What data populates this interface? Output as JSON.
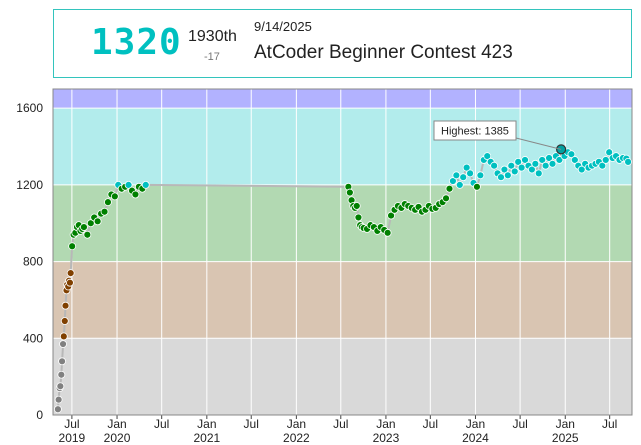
{
  "header": {
    "rating": "1320",
    "place": "1930th",
    "delta": "-17",
    "date": "9/14/2025",
    "contest": "AtCoder Beginner Contest 423"
  },
  "chart_data": {
    "type": "line",
    "title": "",
    "xlabel": "",
    "ylabel": "",
    "ylim": [
      0,
      1700
    ],
    "xlim": [
      "2019-04-15",
      "2025-09-30"
    ],
    "grid": true,
    "bands": [
      {
        "from": 0,
        "to": 400,
        "color": "#d9d9d9"
      },
      {
        "from": 400,
        "to": 800,
        "color": "#d9c5b2"
      },
      {
        "from": 800,
        "to": 1200,
        "color": "#b2d9b2"
      },
      {
        "from": 1200,
        "to": 1600,
        "color": "#b2ecec"
      },
      {
        "from": 1600,
        "to": 1700,
        "color": "#b2b2ff"
      }
    ],
    "y_ticks": [
      0,
      400,
      800,
      1200,
      1600
    ],
    "x_ticks": [
      {
        "date": "2019-07-01",
        "label": "Jul",
        "year": "2019"
      },
      {
        "date": "2020-01-01",
        "label": "Jan",
        "year": "2020"
      },
      {
        "date": "2020-07-01",
        "label": "Jul",
        "year": ""
      },
      {
        "date": "2021-01-01",
        "label": "Jan",
        "year": "2021"
      },
      {
        "date": "2021-07-01",
        "label": "Jul",
        "year": ""
      },
      {
        "date": "2022-01-01",
        "label": "Jan",
        "year": "2022"
      },
      {
        "date": "2022-07-01",
        "label": "Jul",
        "year": ""
      },
      {
        "date": "2023-01-01",
        "label": "Jan",
        "year": "2023"
      },
      {
        "date": "2023-07-01",
        "label": "Jul",
        "year": ""
      },
      {
        "date": "2024-01-01",
        "label": "Jan",
        "year": "2024"
      },
      {
        "date": "2024-07-01",
        "label": "Jul",
        "year": ""
      },
      {
        "date": "2025-01-01",
        "label": "Jan",
        "year": "2025"
      },
      {
        "date": "2025-07-01",
        "label": "Jul",
        "year": ""
      }
    ],
    "highest_label": "Highest: 1385",
    "highest_point": {
      "x": "2024-12-15",
      "y": 1385
    },
    "series": [
      {
        "points": [
          {
            "x": "2019-05-05",
            "y": 30
          },
          {
            "x": "2019-05-08",
            "y": 80
          },
          {
            "x": "2019-05-12",
            "y": 140
          },
          {
            "x": "2019-05-15",
            "y": 150
          },
          {
            "x": "2019-05-19",
            "y": 210
          },
          {
            "x": "2019-05-22",
            "y": 280
          },
          {
            "x": "2019-05-26",
            "y": 370
          },
          {
            "x": "2019-05-29",
            "y": 410
          },
          {
            "x": "2019-06-02",
            "y": 490
          },
          {
            "x": "2019-06-05",
            "y": 570
          },
          {
            "x": "2019-06-09",
            "y": 650
          },
          {
            "x": "2019-06-12",
            "y": 680
          },
          {
            "x": "2019-06-16",
            "y": 670
          },
          {
            "x": "2019-06-19",
            "y": 700
          },
          {
            "x": "2019-06-23",
            "y": 690
          },
          {
            "x": "2019-06-26",
            "y": 740
          },
          {
            "x": "2019-07-02",
            "y": 880
          },
          {
            "x": "2019-07-08",
            "y": 940
          },
          {
            "x": "2019-07-15",
            "y": 950
          },
          {
            "x": "2019-07-22",
            "y": 980
          },
          {
            "x": "2019-07-29",
            "y": 990
          },
          {
            "x": "2019-08-05",
            "y": 960
          },
          {
            "x": "2019-08-12",
            "y": 970
          },
          {
            "x": "2019-08-19",
            "y": 980
          },
          {
            "x": "2019-09-02",
            "y": 940
          },
          {
            "x": "2019-09-16",
            "y": 1000
          },
          {
            "x": "2019-09-30",
            "y": 1030
          },
          {
            "x": "2019-10-14",
            "y": 1010
          },
          {
            "x": "2019-10-28",
            "y": 1050
          },
          {
            "x": "2019-11-11",
            "y": 1060
          },
          {
            "x": "2019-11-25",
            "y": 1110
          },
          {
            "x": "2019-12-09",
            "y": 1150
          },
          {
            "x": "2019-12-23",
            "y": 1140
          },
          {
            "x": "2020-01-06",
            "y": 1200
          },
          {
            "x": "2020-01-20",
            "y": 1180
          },
          {
            "x": "2020-02-03",
            "y": 1190
          },
          {
            "x": "2020-02-17",
            "y": 1200
          },
          {
            "x": "2020-03-02",
            "y": 1170
          },
          {
            "x": "2020-03-16",
            "y": 1150
          },
          {
            "x": "2020-03-30",
            "y": 1190
          },
          {
            "x": "2020-04-13",
            "y": 1180
          },
          {
            "x": "2020-04-27",
            "y": 1200
          },
          {
            "x": "2022-08-01",
            "y": 1190
          },
          {
            "x": "2022-08-07",
            "y": 1160
          },
          {
            "x": "2022-08-14",
            "y": 1120
          },
          {
            "x": "2022-08-21",
            "y": 1090
          },
          {
            "x": "2022-08-28",
            "y": 1080
          },
          {
            "x": "2022-09-04",
            "y": 1090
          },
          {
            "x": "2022-09-11",
            "y": 1030
          },
          {
            "x": "2022-09-18",
            "y": 990
          },
          {
            "x": "2022-09-25",
            "y": 980
          },
          {
            "x": "2022-10-02",
            "y": 975
          },
          {
            "x": "2022-10-16",
            "y": 970
          },
          {
            "x": "2022-10-30",
            "y": 990
          },
          {
            "x": "2022-11-13",
            "y": 980
          },
          {
            "x": "2022-11-27",
            "y": 960
          },
          {
            "x": "2022-12-11",
            "y": 980
          },
          {
            "x": "2022-12-25",
            "y": 965
          },
          {
            "x": "2023-01-08",
            "y": 950
          },
          {
            "x": "2023-01-22",
            "y": 1040
          },
          {
            "x": "2023-02-05",
            "y": 1070
          },
          {
            "x": "2023-02-19",
            "y": 1090
          },
          {
            "x": "2023-03-05",
            "y": 1080
          },
          {
            "x": "2023-03-19",
            "y": 1100
          },
          {
            "x": "2023-04-02",
            "y": 1090
          },
          {
            "x": "2023-04-16",
            "y": 1080
          },
          {
            "x": "2023-04-30",
            "y": 1070
          },
          {
            "x": "2023-05-14",
            "y": 1085
          },
          {
            "x": "2023-05-28",
            "y": 1060
          },
          {
            "x": "2023-06-11",
            "y": 1070
          },
          {
            "x": "2023-06-25",
            "y": 1090
          },
          {
            "x": "2023-07-09",
            "y": 1075
          },
          {
            "x": "2023-07-23",
            "y": 1080
          },
          {
            "x": "2023-08-06",
            "y": 1100
          },
          {
            "x": "2023-08-20",
            "y": 1110
          },
          {
            "x": "2023-09-03",
            "y": 1130
          },
          {
            "x": "2023-09-17",
            "y": 1180
          },
          {
            "x": "2023-10-01",
            "y": 1220
          },
          {
            "x": "2023-10-15",
            "y": 1250
          },
          {
            "x": "2023-10-29",
            "y": 1200
          },
          {
            "x": "2023-11-12",
            "y": 1240
          },
          {
            "x": "2023-11-26",
            "y": 1290
          },
          {
            "x": "2023-12-10",
            "y": 1260
          },
          {
            "x": "2023-12-24",
            "y": 1210
          },
          {
            "x": "2024-01-07",
            "y": 1190
          },
          {
            "x": "2024-01-21",
            "y": 1250
          },
          {
            "x": "2024-02-04",
            "y": 1330
          },
          {
            "x": "2024-02-18",
            "y": 1350
          },
          {
            "x": "2024-03-03",
            "y": 1320
          },
          {
            "x": "2024-03-17",
            "y": 1300
          },
          {
            "x": "2024-03-31",
            "y": 1260
          },
          {
            "x": "2024-04-14",
            "y": 1240
          },
          {
            "x": "2024-04-28",
            "y": 1280
          },
          {
            "x": "2024-05-12",
            "y": 1250
          },
          {
            "x": "2024-05-26",
            "y": 1300
          },
          {
            "x": "2024-06-09",
            "y": 1270
          },
          {
            "x": "2024-06-23",
            "y": 1320
          },
          {
            "x": "2024-07-07",
            "y": 1290
          },
          {
            "x": "2024-07-21",
            "y": 1330
          },
          {
            "x": "2024-08-04",
            "y": 1300
          },
          {
            "x": "2024-08-18",
            "y": 1280
          },
          {
            "x": "2024-09-01",
            "y": 1310
          },
          {
            "x": "2024-09-15",
            "y": 1260
          },
          {
            "x": "2024-09-29",
            "y": 1330
          },
          {
            "x": "2024-10-13",
            "y": 1300
          },
          {
            "x": "2024-10-27",
            "y": 1340
          },
          {
            "x": "2024-11-10",
            "y": 1310
          },
          {
            "x": "2024-11-24",
            "y": 1350
          },
          {
            "x": "2024-12-08",
            "y": 1330
          },
          {
            "x": "2024-12-15",
            "y": 1385
          },
          {
            "x": "2024-12-29",
            "y": 1350
          },
          {
            "x": "2025-01-12",
            "y": 1370
          },
          {
            "x": "2025-01-26",
            "y": 1360
          },
          {
            "x": "2025-02-09",
            "y": 1330
          },
          {
            "x": "2025-02-23",
            "y": 1300
          },
          {
            "x": "2025-03-09",
            "y": 1280
          },
          {
            "x": "2025-03-23",
            "y": 1310
          },
          {
            "x": "2025-04-06",
            "y": 1290
          },
          {
            "x": "2025-04-20",
            "y": 1300
          },
          {
            "x": "2025-05-04",
            "y": 1310
          },
          {
            "x": "2025-05-18",
            "y": 1320
          },
          {
            "x": "2025-06-01",
            "y": 1300
          },
          {
            "x": "2025-06-15",
            "y": 1330
          },
          {
            "x": "2025-06-29",
            "y": 1370
          },
          {
            "x": "2025-07-13",
            "y": 1340
          },
          {
            "x": "2025-07-27",
            "y": 1350
          },
          {
            "x": "2025-08-10",
            "y": 1330
          },
          {
            "x": "2025-08-24",
            "y": 1340
          },
          {
            "x": "2025-09-07",
            "y": 1337
          },
          {
            "x": "2025-09-14",
            "y": 1320
          }
        ]
      }
    ]
  }
}
